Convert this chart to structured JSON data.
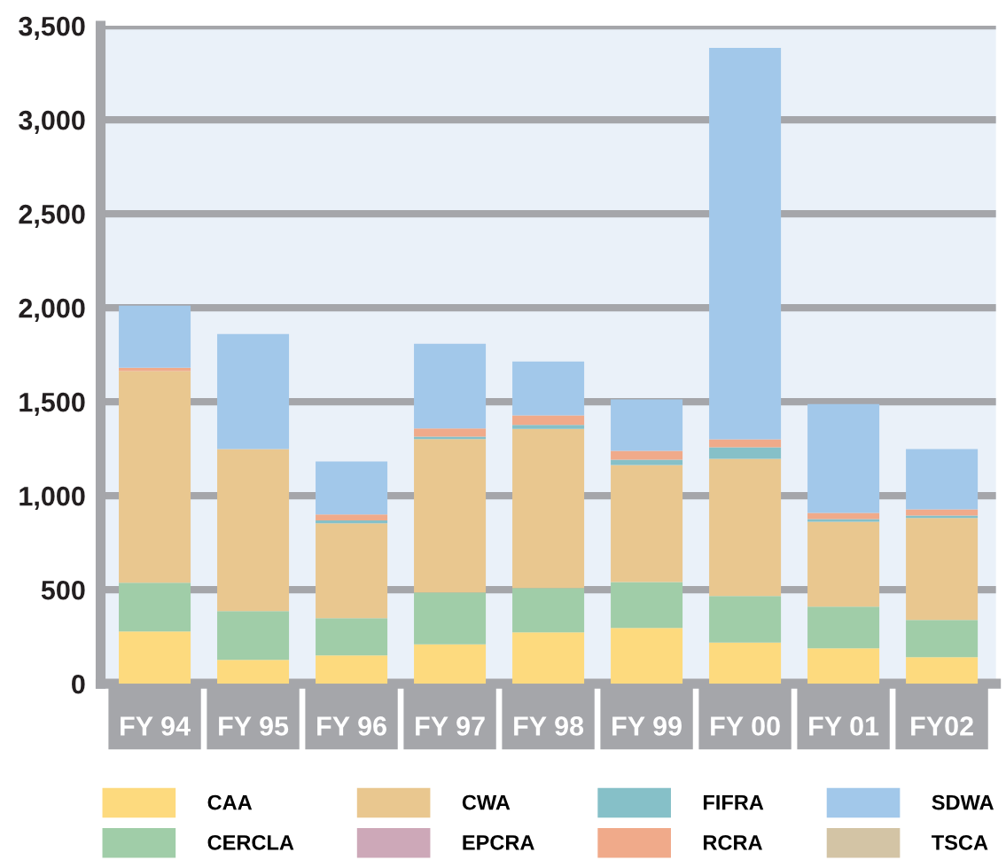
{
  "chart_data": {
    "type": "bar",
    "stacked": true,
    "categories": [
      "FY 94",
      "FY 95",
      "FY 96",
      "FY 97",
      "FY 98",
      "FY 99",
      "FY 00",
      "FY 01",
      "FY02"
    ],
    "series": [
      {
        "name": "CAA",
        "color": "#fdda7e",
        "values": [
          278,
          127,
          151,
          209,
          273,
          297,
          219,
          188,
          141
        ]
      },
      {
        "name": "CERCLA",
        "color": "#a0cda8",
        "values": [
          259,
          259,
          198,
          276,
          236,
          244,
          247,
          222,
          198
        ]
      },
      {
        "name": "CWA",
        "color": "#e9c78f",
        "values": [
          1126,
          862,
          504,
          816,
          847,
          622,
          730,
          452,
          542
        ]
      },
      {
        "name": "EPCRA",
        "color": "#cda8b8",
        "values": [
          0,
          0,
          0,
          0,
          0,
          0,
          0,
          0,
          0
        ]
      },
      {
        "name": "FIFRA",
        "color": "#86c0c8",
        "values": [
          0,
          0,
          15,
          13,
          21,
          29,
          62,
          14,
          14
        ]
      },
      {
        "name": "RCRA",
        "color": "#f0aa8a",
        "values": [
          18,
          0,
          32,
          44,
          50,
          47,
          42,
          33,
          33
        ]
      },
      {
        "name": "SDWA",
        "color": "#a2c8ea",
        "values": [
          330,
          612,
          282,
          450,
          287,
          273,
          2082,
          579,
          320
        ]
      },
      {
        "name": "TSCA",
        "color": "#d3c4a5",
        "values": [
          0,
          0,
          0,
          null,
          0,
          0,
          0,
          0,
          0
        ]
      }
    ],
    "ylim": [
      0,
      3500
    ],
    "yticks": [
      {
        "value": 0,
        "label": "0"
      },
      {
        "value": 500,
        "label": "500"
      },
      {
        "value": 1000,
        "label": "1,000"
      },
      {
        "value": 1500,
        "label": "1,500"
      },
      {
        "value": 2000,
        "label": "2,000"
      },
      {
        "value": 2500,
        "label": "2,500"
      },
      {
        "value": 3000,
        "label": "3,000"
      },
      {
        "value": 3500,
        "label": "3,500"
      }
    ],
    "grid": "y",
    "legend": "bottom"
  }
}
